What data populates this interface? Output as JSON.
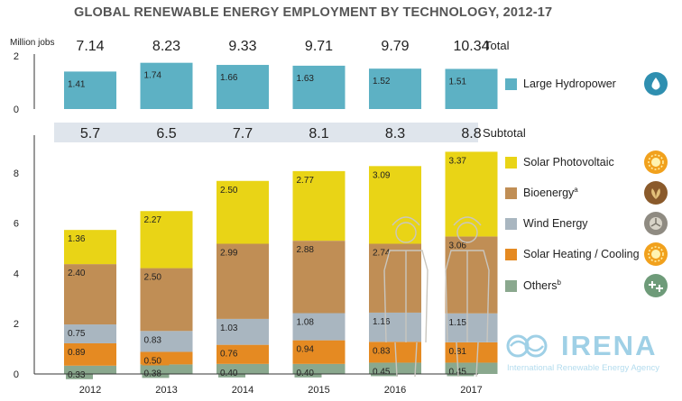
{
  "title": "GLOBAL RENEWABLE ENERGY EMPLOYMENT BY TECHNOLOGY, 2012-17",
  "unit_label": "Million jobs",
  "chart_data": {
    "type": "bar",
    "categories": [
      "2012",
      "2013",
      "2014",
      "2015",
      "2016",
      "2017"
    ],
    "totals": {
      "label": "Total",
      "values": [
        "7.14",
        "8.23",
        "9.33",
        "9.71",
        "9.79",
        "10.34"
      ]
    },
    "top_panel": {
      "ylim": [
        0,
        2
      ],
      "yticks": [
        "0",
        "2"
      ],
      "series": [
        {
          "name": "Large Hydropower",
          "color": "#5db1c4",
          "values": [
            1.41,
            1.74,
            1.66,
            1.63,
            1.52,
            1.51
          ]
        }
      ]
    },
    "subtotals": {
      "label": "Subtotal",
      "values": [
        "5.7",
        "6.5",
        "7.7",
        "8.1",
        "8.3",
        "8.8"
      ]
    },
    "bottom_panel": {
      "type": "stacked-bar",
      "ylim": [
        0,
        9.5
      ],
      "yticks": [
        "0",
        "2",
        "4",
        "6",
        "8"
      ],
      "series": [
        {
          "name": "Others",
          "sup": "b",
          "color": "#8aa88e",
          "values": [
            0.33,
            0.38,
            0.4,
            0.4,
            0.45,
            0.45
          ]
        },
        {
          "name": "Solar Heating / Cooling",
          "sup": "",
          "color": "#e58a22",
          "values": [
            0.89,
            0.5,
            0.76,
            0.94,
            0.83,
            0.81
          ]
        },
        {
          "name": "Wind Energy",
          "sup": "",
          "color": "#a9b6c0",
          "values": [
            0.75,
            0.83,
            1.03,
            1.08,
            1.16,
            1.15
          ]
        },
        {
          "name": "Bioenergy",
          "sup": "a",
          "color": "#c08e55",
          "values": [
            2.4,
            2.5,
            2.99,
            2.88,
            2.74,
            3.06
          ]
        },
        {
          "name": "Solar Photovoltaic",
          "sup": "",
          "color": "#e9d416",
          "values": [
            1.36,
            2.27,
            2.5,
            2.77,
            3.09,
            3.37
          ]
        }
      ]
    }
  },
  "legend": [
    {
      "label": "Large Hydropower",
      "sup": "",
      "color": "#5db1c4",
      "icon": "water-drop-icon",
      "icon_color": "#2f8fb0"
    },
    {
      "label": "Solar Photovoltaic",
      "sup": "",
      "color": "#e9d416",
      "icon": "sun-icon",
      "icon_color": "#f1a11d"
    },
    {
      "label": "Bioenergy",
      "sup": "a",
      "color": "#c08e55",
      "icon": "leaf-icon",
      "icon_color": "#8a5a2b"
    },
    {
      "label": "Wind Energy",
      "sup": "",
      "color": "#a9b6c0",
      "icon": "wind-turbine-icon",
      "icon_color": "#8f8b82"
    },
    {
      "label": "Solar Heating / Cooling",
      "sup": "",
      "color": "#e58a22",
      "icon": "solar-heat-icon",
      "icon_color": "#f1a11d"
    },
    {
      "label": "Others",
      "sup": "b",
      "color": "#8aa88e",
      "icon": "plus-icon",
      "icon_color": "#6e9b79"
    }
  ],
  "branding": {
    "logo": "IRENA",
    "subtitle": "International Renewable Energy Agency"
  }
}
